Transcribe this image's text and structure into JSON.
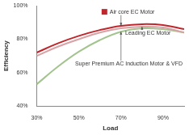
{
  "chart_data": {
    "type": "line",
    "x_label": "Load",
    "y_label": "Efficiency",
    "x": [
      30,
      40,
      50,
      60,
      70,
      80,
      90,
      100
    ],
    "series": [
      {
        "name": "Air core EC Motor",
        "color": "#c0272d",
        "values": [
          72,
          77.5,
          82,
          85.5,
          88,
          89,
          88.5,
          86
        ]
      },
      {
        "name": "Leading EC Motor",
        "color": "#d9a3a6",
        "values": [
          70,
          75.5,
          80,
          84,
          86.5,
          87.5,
          87,
          84
        ]
      },
      {
        "name": "Super Premium AC Induction Motor & VFD",
        "color": "#a3c48e",
        "values": [
          53,
          63.5,
          72.5,
          79.5,
          84.5,
          86.5,
          86,
          84
        ]
      }
    ],
    "xlim": [
      30,
      100
    ],
    "xticks": [
      {
        "value": 30,
        "label": "30%"
      },
      {
        "value": 50,
        "label": "50%"
      },
      {
        "value": 70,
        "label": "70%"
      },
      {
        "value": 90,
        "label": "90%"
      }
    ],
    "ylim": [
      40,
      100
    ],
    "yticks": [
      {
        "value": 40,
        "label": "40%"
      },
      {
        "value": 60,
        "label": "60%"
      },
      {
        "value": 80,
        "label": "80%"
      },
      {
        "value": 100,
        "label": "100%"
      }
    ],
    "grid": false
  }
}
